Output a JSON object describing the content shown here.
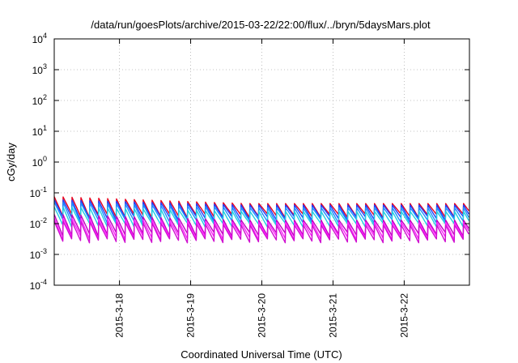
{
  "chart_data": {
    "type": "line",
    "title": "/data/run/goesPlots/archive/2015-03-22/22:00/flux/../bryn/5daysMars.plot",
    "xlabel": "Coordinated Universal Time (UTC)",
    "ylabel": "cGy/day",
    "y_scale": "log",
    "ylim": [
      0.0001,
      10000
    ],
    "y_ticks": [
      {
        "value": 0.0001,
        "base": "10",
        "exp": "-4"
      },
      {
        "value": 0.001,
        "base": "10",
        "exp": "-3"
      },
      {
        "value": 0.01,
        "base": "10",
        "exp": "-2"
      },
      {
        "value": 0.1,
        "base": "10",
        "exp": "-1"
      },
      {
        "value": 1,
        "base": "10",
        "exp": "0"
      },
      {
        "value": 10,
        "base": "10",
        "exp": "1"
      },
      {
        "value": 100,
        "base": "10",
        "exp": "2"
      },
      {
        "value": 1000,
        "base": "10",
        "exp": "3"
      },
      {
        "value": 10000,
        "base": "10",
        "exp": "4"
      }
    ],
    "xlim": [
      "2015-03-17 02:00",
      "2015-03-22 22:00"
    ],
    "x_ticks": [
      {
        "value": "2015-03-18 00:00",
        "label": "2015-3-18"
      },
      {
        "value": "2015-03-19 00:00",
        "label": "2015-3-19"
      },
      {
        "value": "2015-03-20 00:00",
        "label": "2015-3-20"
      },
      {
        "value": "2015-03-21 00:00",
        "label": "2015-3-21"
      },
      {
        "value": "2015-03-22 00:00",
        "label": "2015-3-22"
      }
    ],
    "grid": true,
    "legend": "none",
    "sawtooth_period_hours": 3,
    "series": [
      {
        "color": "#e8001c",
        "peak_start": 0.075,
        "peak_end": 0.045,
        "trough": 0.018
      },
      {
        "color": "#1f3fff",
        "peak_start": 0.06,
        "peak_end": 0.04,
        "trough": 0.015
      },
      {
        "color": "#1f8fff",
        "peak_start": 0.05,
        "peak_end": 0.033,
        "trough": 0.012
      },
      {
        "color": "#20d0e0",
        "peak_start": 0.035,
        "peak_end": 0.025,
        "trough": 0.009
      },
      {
        "color": "#c000c0",
        "peak_start": 0.02,
        "peak_end": 0.013,
        "trough": 0.0045
      },
      {
        "color": "#ff20ff",
        "peak_start": 0.015,
        "peak_end": 0.011,
        "trough": 0.0035
      },
      {
        "color": "#d010d0",
        "peak_start": 0.012,
        "peak_end": 0.009,
        "trough": 0.0028
      }
    ]
  }
}
